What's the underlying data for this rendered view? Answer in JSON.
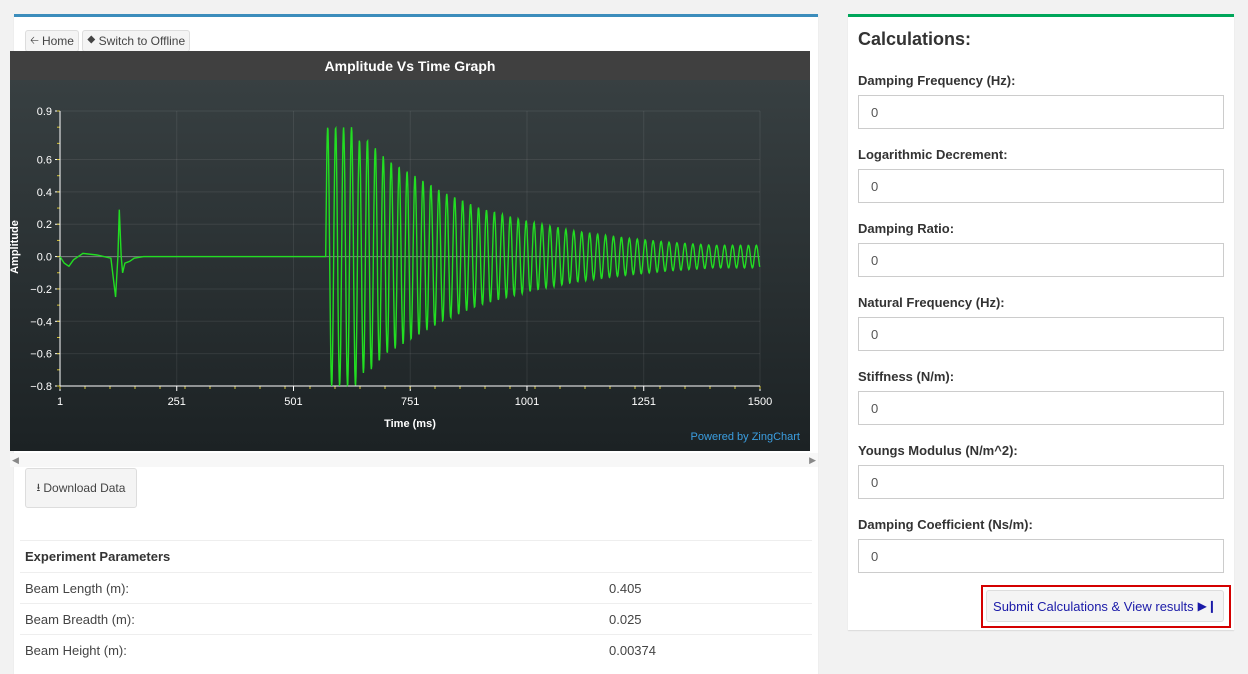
{
  "toolbar": {
    "home_label": "Home",
    "offline_label": "Switch to Offline",
    "download_label": "Download Data"
  },
  "chart_data": {
    "type": "line",
    "title": "Amplitude Vs Time Graph",
    "xlabel": "Time (ms)",
    "ylabel": "Amplitude",
    "x_ticks": [
      "1",
      "251",
      "501",
      "751",
      "1001",
      "1251",
      "1500"
    ],
    "y_ticks": [
      "0.9",
      "0.6",
      "0.4",
      "0.2",
      "0.0",
      "−0.2",
      "−0.4",
      "−0.6",
      "−0.8"
    ],
    "xlim": [
      1,
      1500
    ],
    "ylim": [
      -0.8,
      0.9
    ],
    "grid": true,
    "credit": "Powered by ZingChart",
    "series": [
      {
        "color": "#22dd22",
        "x": [
          1,
          10,
          20,
          30,
          50,
          80,
          110,
          120,
          125,
          128,
          132,
          135,
          140,
          150,
          160,
          180,
          200,
          300,
          400,
          500,
          570,
          576,
          580,
          586,
          592,
          600,
          608,
          616,
          624,
          632,
          640,
          660,
          700,
          760,
          820,
          900,
          1000,
          1100,
          1200,
          1300,
          1400,
          1500
        ],
        "y": [
          0.0,
          -0.04,
          -0.06,
          -0.02,
          0.02,
          0.01,
          -0.01,
          -0.25,
          0.0,
          0.29,
          0.0,
          -0.1,
          -0.04,
          -0.03,
          -0.01,
          0.0,
          0.0,
          0.0,
          0.0,
          0.0,
          0.0,
          0.29,
          0.0,
          -0.7,
          0.0,
          0.83,
          0.0,
          -0.75,
          0.0,
          0.79,
          -0.72,
          0.72,
          0.6,
          0.5,
          0.4,
          0.3,
          0.22,
          0.16,
          0.12,
          0.09,
          0.07,
          -0.07
        ]
      }
    ]
  },
  "parameters": {
    "title": "Experiment Parameters",
    "rows": [
      {
        "label": "Beam Length (m):",
        "value": "0.405"
      },
      {
        "label": "Beam Breadth (m):",
        "value": "0.025"
      },
      {
        "label": "Beam Height (m):",
        "value": "0.00374"
      }
    ]
  },
  "calculations": {
    "title": "Calculations:",
    "fields": [
      {
        "label": "Damping Frequency (Hz):",
        "value": "0"
      },
      {
        "label": "Logarithmic Decrement:",
        "value": "0"
      },
      {
        "label": "Damping Ratio:",
        "value": "0"
      },
      {
        "label": "Natural Frequency (Hz):",
        "value": "0"
      },
      {
        "label": "Stiffness (N/m):",
        "value": "0"
      },
      {
        "label": "Youngs Modulus (N/m^2):",
        "value": "0"
      },
      {
        "label": "Damping Coefficient (Ns/m):",
        "value": "0"
      }
    ],
    "submit_label": "Submit Calculations & View results"
  }
}
